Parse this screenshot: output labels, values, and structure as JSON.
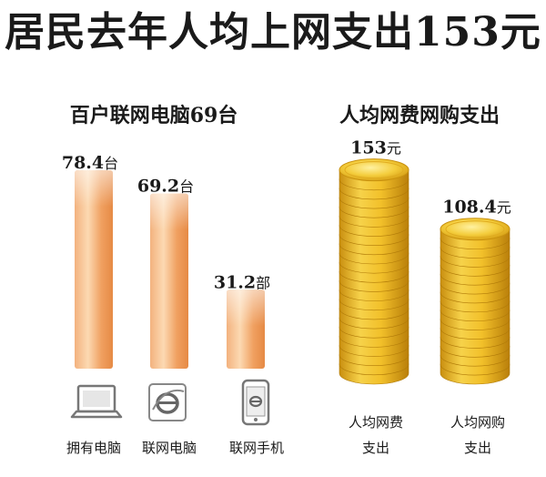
{
  "title": "居民去年人均上网支出153元",
  "chart_data": [
    {
      "type": "bar",
      "title": "百户联网电脑69台",
      "categories": [
        "拥有电脑",
        "联网电脑",
        "联网手机"
      ],
      "values": [
        78.4,
        69.2,
        31.2
      ],
      "units": [
        "台",
        "台",
        "部"
      ],
      "bar_color": "#f0a060"
    },
    {
      "type": "bar",
      "title": "人均网费网购支出",
      "categories": [
        "人均网费支出",
        "人均网购支出"
      ],
      "category_lines": [
        [
          "人均网费",
          "支出"
        ],
        [
          "人均网购",
          "支出"
        ]
      ],
      "values": [
        153,
        108.4
      ],
      "units": [
        "元",
        "元"
      ],
      "bar_color": "#e8b820"
    }
  ],
  "icons": [
    "laptop-icon",
    "ie-browser-icon",
    "mobile-phone-icon"
  ]
}
